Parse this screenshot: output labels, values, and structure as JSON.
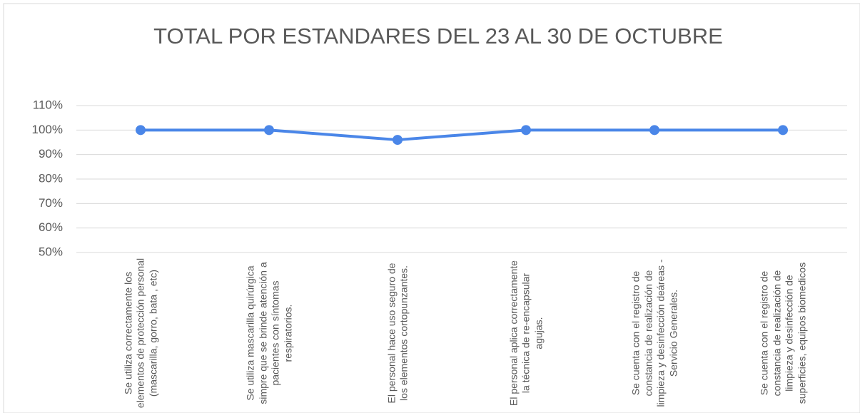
{
  "chart_data": {
    "type": "line",
    "title": "TOTAL POR ESTANDARES DEL 23 AL 30 DE OCTUBRE",
    "categories": [
      "Se utiliza correctamente los elementos de protección personal (mascarilla, gorro, bata , etc)",
      "Se utiliza mascarilla quirúrgica simpre que se brinde atención a pacientes con síntomas respiratorios.",
      "El personal hace uso seguro de los elementos cortopunzantes.",
      "El personal aplica correctamente la técnica de re-encapsular agujas.",
      "Se cuenta con el registro de constancia de realización de limpieza y desinfección deáreas - Servicio Generales.",
      "Se cuenta con el registro de constancia de realización de limpieza y desinfección de superficies, equipos biomedicos"
    ],
    "values": [
      100,
      100,
      96,
      100,
      100,
      100
    ],
    "color": "#4a86e8",
    "ylim": [
      50,
      110
    ],
    "yticks": [
      {
        "value": 50,
        "label": "50%"
      },
      {
        "value": 60,
        "label": "60%"
      },
      {
        "value": 70,
        "label": "70%"
      },
      {
        "value": 80,
        "label": "80%"
      },
      {
        "value": 90,
        "label": "90%"
      },
      {
        "value": 100,
        "label": "100%"
      },
      {
        "value": 110,
        "label": "110%"
      }
    ],
    "grid": true
  }
}
